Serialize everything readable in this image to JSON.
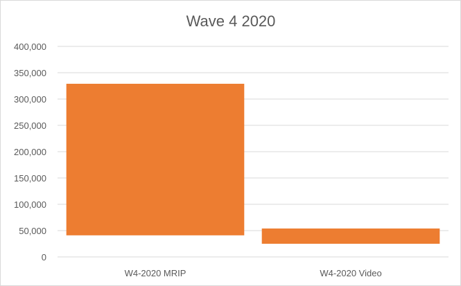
{
  "chart_data": {
    "type": "bar",
    "title": "Wave 4 2020",
    "categories": [
      "W4-2020 MRIP",
      "W4-2020 Video"
    ],
    "ranges": [
      {
        "category": "W4-2020 MRIP",
        "low": 41000,
        "high": 329000
      },
      {
        "category": "W4-2020 Video",
        "low": 25000,
        "high": 54000
      }
    ],
    "yticks": [
      "0",
      "50,000",
      "100,000",
      "150,000",
      "200,000",
      "250,000",
      "300,000",
      "350,000",
      "400,000"
    ],
    "ylim": [
      0,
      400000
    ],
    "xlabel": "",
    "ylabel": "",
    "grid": true,
    "legend": "none",
    "bar_color": "#ED7D31"
  }
}
